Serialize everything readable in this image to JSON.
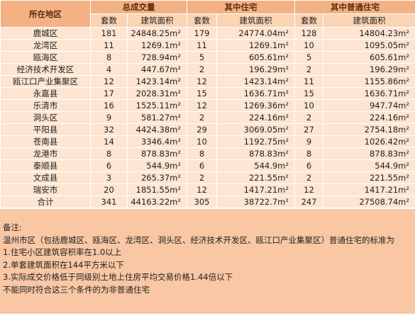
{
  "table": {
    "corner": "所在地区",
    "group_headers": [
      "总成交量",
      "其中住宅",
      "其中普通住宅"
    ],
    "sub_headers": [
      "套数",
      "建筑面积",
      "套数",
      "建筑面积",
      "套数",
      "建筑面积"
    ],
    "rows": [
      [
        "鹿城区",
        "181",
        "24848.25m²",
        "179",
        "24774.04m²",
        "128",
        "14804.23m²"
      ],
      [
        "龙湾区",
        "11",
        "1269.1m²",
        "11",
        "1269.1m²",
        "10",
        "1095.05m²"
      ],
      [
        "瓯海区",
        "8",
        "728.94m²",
        "5",
        "605.61m²",
        "5",
        "605.61m²"
      ],
      [
        "经济技术开发区",
        "4",
        "447.67m²",
        "2",
        "196.29m²",
        "2",
        "196.29m²"
      ],
      [
        "瓯江口产业集聚区",
        "12",
        "1423.14m²",
        "12",
        "1423.14m²",
        "11",
        "1155.86m²"
      ],
      [
        "永嘉县",
        "17",
        "2028.31m²",
        "15",
        "1636.71m²",
        "15",
        "1636.71m²"
      ],
      [
        "乐清市",
        "16",
        "1525.11m²",
        "12",
        "1269.36m²",
        "10",
        "947.74m²"
      ],
      [
        "洞头区",
        "9",
        "581.27m²",
        "2",
        "224.16m²",
        "2",
        "224.16m²"
      ],
      [
        "平阳县",
        "32",
        "4424.38m²",
        "29",
        "3069.05m²",
        "27",
        "2754.18m²"
      ],
      [
        "苍南县",
        "14",
        "3346.4m²",
        "10",
        "1192.75m²",
        "9",
        "1026.42m²"
      ],
      [
        "龙港市",
        "8",
        "878.83m²",
        "8",
        "878.83m²",
        "8",
        "878.83m²"
      ],
      [
        "泰顺县",
        "6",
        "544.9m²",
        "6",
        "544.9m²",
        "6",
        "544.9m²"
      ],
      [
        "文成县",
        "3",
        "265.37m²",
        "2",
        "221.55m²",
        "2",
        "221.55m²"
      ],
      [
        "瑞安市",
        "20",
        "1851.55m²",
        "12",
        "1417.21m²",
        "12",
        "1417.21m²"
      ],
      [
        "合计",
        "341",
        "44163.22m²",
        "305",
        "38722.7m²",
        "247",
        "27508.74m²"
      ]
    ]
  },
  "notes": {
    "title": "备注:",
    "lines": [
      "温州市区（包括鹿城区、瓯海区、龙湾区、洞头区、经济技术开发区、瓯江口产业集聚区）普通住宅的标准为",
      "1.住宅小区建筑容积率在1.0以上",
      "2.单套建筑面积在144平方米以下",
      "3.实际成交价格低于同级别土地上住房平均交易价格1.44倍以下",
      "不能同时符合这三个条件的为非普通住宅"
    ]
  }
}
